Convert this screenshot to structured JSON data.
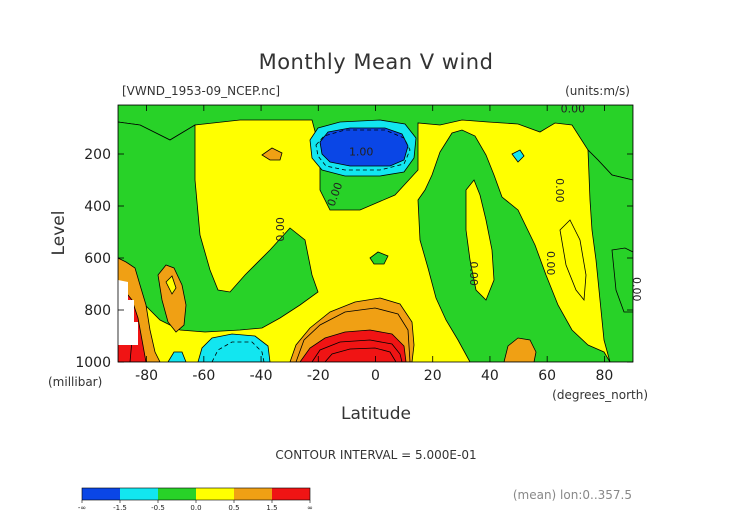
{
  "chart_data": {
    "type": "heatmap",
    "title": "Monthly Mean V wind",
    "dataset_label": "[VWND_1953-09_NCEP.nc]",
    "units_label": "(units:m/s)",
    "xlabel": "Latitude",
    "x_unit_label": "(degrees_north)",
    "ylabel": "Level",
    "y_unit_label": "(millibar)",
    "xlim": [
      -90,
      90
    ],
    "ylim": [
      1000,
      10
    ],
    "x_ticks": [
      -80,
      -60,
      -40,
      -20,
      0,
      20,
      40,
      60,
      80
    ],
    "y_ticks": [
      200,
      400,
      600,
      800,
      1000
    ],
    "contour_interval_text": "CONTOUR INTERVAL = 5.000E-01",
    "footer_text": "(mean) lon:0..357.5",
    "contour_labels": [
      {
        "text": "0.00",
        "lat": 69,
        "lev": 40,
        "rot": 0
      },
      {
        "text": "0.00",
        "lat": -32,
        "lev": 490,
        "rot": -90
      },
      {
        "text": "0.00",
        "lat": -13,
        "lev": 360,
        "rot": -70
      },
      {
        "text": "1.00",
        "lat": -5,
        "lev": 205,
        "rot": 0
      },
      {
        "text": "0.00",
        "lat": 63,
        "lev": 340,
        "rot": 90
      },
      {
        "text": "0.00",
        "lat": 33,
        "lev": 660,
        "rot": 90
      },
      {
        "text": "0.00",
        "lat": 60,
        "lev": 620,
        "rot": 90
      },
      {
        "text": "0.00",
        "lat": 90,
        "lev": 720,
        "rot": 90
      }
    ],
    "colorbar": {
      "colors": [
        "#0a46e6",
        "#12e6f0",
        "#28d228",
        "#ffff00",
        "#f0a014",
        "#f01414"
      ],
      "labels": [
        "-∞",
        "-1.5",
        "-0.5",
        "0.0",
        "0.5",
        "1.5",
        "∞"
      ]
    }
  }
}
